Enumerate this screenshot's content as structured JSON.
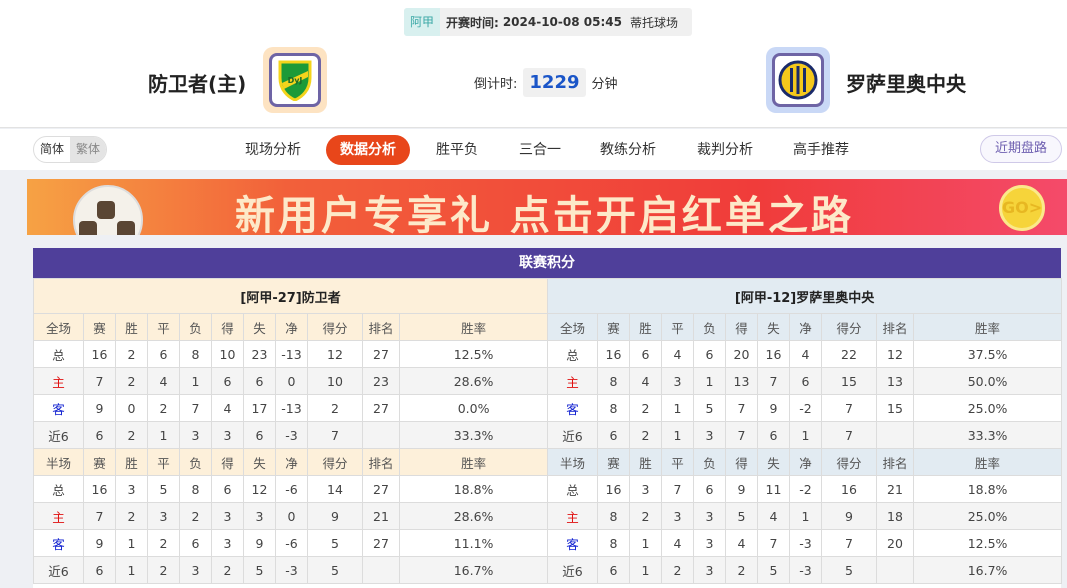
{
  "match": {
    "league": "阿甲",
    "time_label": "开赛时间:",
    "time": "2024-10-08 05:45",
    "venue": "蒂托球场"
  },
  "home": {
    "name": "防卫者(主)",
    "logo_text": "DyJ"
  },
  "away": {
    "name": "罗萨里奥中央"
  },
  "countdown": {
    "label": "倒计时:",
    "value": "1229",
    "unit": "分钟"
  },
  "lang": [
    "简体",
    "繁体"
  ],
  "tabs": [
    "现场分析",
    "数据分析",
    "胜平负",
    "三合一",
    "教练分析",
    "裁判分析",
    "高手推荐"
  ],
  "active_tab": "数据分析",
  "recent_button": "近期盘路",
  "banner": {
    "text": "新用户专享礼 点击开启红单之路",
    "go": "GO>"
  },
  "colors": {
    "accent": "#e8461a",
    "title_bar": "#4f3f9a",
    "home_row": "#e01010",
    "away_row": "#1020d0"
  },
  "standings": {
    "title": "联赛积分",
    "columns_full": [
      "全场",
      "赛",
      "胜",
      "平",
      "负",
      "得",
      "失",
      "净",
      "得分",
      "排名",
      "胜率"
    ],
    "columns_half": [
      "半场",
      "赛",
      "胜",
      "平",
      "负",
      "得",
      "失",
      "净",
      "得分",
      "排名",
      "胜率"
    ],
    "teams": [
      {
        "header": "[阿甲-27]防卫者",
        "full": [
          [
            "总",
            "16",
            "2",
            "6",
            "8",
            "10",
            "23",
            "-13",
            "12",
            "27",
            "12.5%"
          ],
          [
            "主",
            "7",
            "2",
            "4",
            "1",
            "6",
            "6",
            "0",
            "10",
            "23",
            "28.6%"
          ],
          [
            "客",
            "9",
            "0",
            "2",
            "7",
            "4",
            "17",
            "-13",
            "2",
            "27",
            "0.0%"
          ],
          [
            "近6",
            "6",
            "2",
            "1",
            "3",
            "3",
            "6",
            "-3",
            "7",
            "",
            "33.3%"
          ]
        ],
        "half": [
          [
            "总",
            "16",
            "3",
            "5",
            "8",
            "6",
            "12",
            "-6",
            "14",
            "27",
            "18.8%"
          ],
          [
            "主",
            "7",
            "2",
            "3",
            "2",
            "3",
            "3",
            "0",
            "9",
            "21",
            "28.6%"
          ],
          [
            "客",
            "9",
            "1",
            "2",
            "6",
            "3",
            "9",
            "-6",
            "5",
            "27",
            "11.1%"
          ],
          [
            "近6",
            "6",
            "1",
            "2",
            "3",
            "2",
            "5",
            "-3",
            "5",
            "",
            "16.7%"
          ]
        ]
      },
      {
        "header": "[阿甲-12]罗萨里奥中央",
        "full": [
          [
            "总",
            "16",
            "6",
            "4",
            "6",
            "20",
            "16",
            "4",
            "22",
            "12",
            "37.5%"
          ],
          [
            "主",
            "8",
            "4",
            "3",
            "1",
            "13",
            "7",
            "6",
            "15",
            "13",
            "50.0%"
          ],
          [
            "客",
            "8",
            "2",
            "1",
            "5",
            "7",
            "9",
            "-2",
            "7",
            "15",
            "25.0%"
          ],
          [
            "近6",
            "6",
            "2",
            "1",
            "3",
            "7",
            "6",
            "1",
            "7",
            "",
            "33.3%"
          ]
        ],
        "half": [
          [
            "总",
            "16",
            "3",
            "7",
            "6",
            "9",
            "11",
            "-2",
            "16",
            "21",
            "18.8%"
          ],
          [
            "主",
            "8",
            "2",
            "3",
            "3",
            "5",
            "4",
            "1",
            "9",
            "18",
            "25.0%"
          ],
          [
            "客",
            "8",
            "1",
            "4",
            "3",
            "4",
            "7",
            "-3",
            "7",
            "20",
            "12.5%"
          ],
          [
            "近6",
            "6",
            "1",
            "2",
            "3",
            "2",
            "5",
            "-3",
            "5",
            "",
            "16.7%"
          ]
        ]
      }
    ]
  }
}
